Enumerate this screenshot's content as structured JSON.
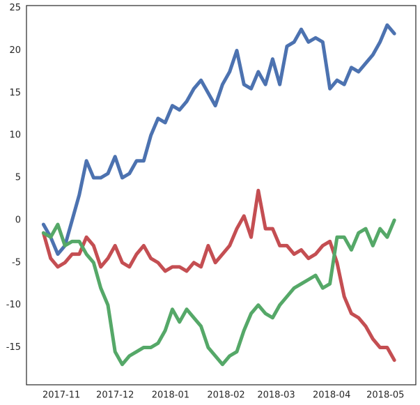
{
  "chart_data": {
    "type": "line",
    "x": [
      -10,
      -6,
      -2,
      2,
      6,
      10,
      14,
      18,
      22,
      26,
      30,
      34,
      38,
      42,
      46,
      50,
      54,
      58,
      62,
      66,
      70,
      74,
      78,
      82,
      86,
      90,
      94,
      98,
      102,
      106,
      110,
      114,
      118,
      122,
      126,
      130,
      134,
      138,
      142,
      146,
      150,
      154,
      158,
      162,
      166,
      170,
      174,
      178,
      182,
      186
    ],
    "series": [
      {
        "color": "#4c72b0",
        "values": [
          -0.5,
          -2,
          -4,
          -3,
          0,
          3,
          7,
          5,
          5,
          5.5,
          7.5,
          5,
          5.5,
          7,
          7,
          10,
          12,
          11.5,
          13.5,
          13,
          14,
          15.5,
          16.5,
          15,
          13.5,
          16,
          17.5,
          20,
          16,
          15.5,
          17.5,
          16,
          19,
          16,
          20.5,
          21,
          22.5,
          21,
          21.5,
          21,
          15.5,
          16.5,
          16,
          18,
          17.5,
          18.5,
          19.5,
          21,
          23,
          22
        ]
      },
      {
        "color": "#c44e52",
        "values": [
          -1.5,
          -4.5,
          -5.5,
          -5,
          -4,
          -4,
          -2,
          -3,
          -5.5,
          -4.5,
          -3,
          -5,
          -5.5,
          -4,
          -3,
          -4.5,
          -5,
          -6,
          -5.5,
          -5.5,
          -6,
          -5,
          -5.5,
          -3,
          -5,
          -4,
          -3,
          -1,
          0.5,
          -2,
          3.5,
          -1,
          -1,
          -3,
          -3,
          -4,
          -3.5,
          -4.5,
          -4,
          -3,
          -2.5,
          -5,
          -9,
          -11,
          -11.5,
          -12.5,
          -14,
          -15,
          -15,
          -16.5
        ]
      },
      {
        "color": "#55a868",
        "values": [
          -1.5,
          -2,
          -0.5,
          -3,
          -2.5,
          -2.5,
          -4,
          -5,
          -8,
          -10,
          -15.5,
          -17,
          -16,
          -15.5,
          -15,
          -15,
          -14.5,
          -13,
          -10.5,
          -12,
          -10.5,
          -11.5,
          -12.5,
          -15,
          -16,
          -17,
          -16,
          -15.5,
          -13,
          -11,
          -10,
          -11,
          -11.5,
          -10,
          -9,
          -8,
          -7.5,
          -7,
          -6.5,
          -8,
          -7.5,
          -2,
          -2,
          -3.5,
          -1.5,
          -1,
          -3,
          -1,
          -2,
          0
        ]
      }
    ],
    "xlim": [
      -19.5,
      198
    ],
    "xticks": [
      {
        "value": 0,
        "label": "2017-11"
      },
      {
        "value": 30,
        "label": "2017-12"
      },
      {
        "value": 61,
        "label": "2018-01"
      },
      {
        "value": 92,
        "label": "2018-02"
      },
      {
        "value": 120,
        "label": "2018-03"
      },
      {
        "value": 151,
        "label": "2018-04"
      },
      {
        "value": 181,
        "label": "2018-05"
      }
    ],
    "ylim": [
      -19.4,
      25.3
    ],
    "yticks": [
      -15,
      -10,
      -5,
      0,
      5,
      10,
      15,
      20,
      25
    ],
    "grid": false
  }
}
